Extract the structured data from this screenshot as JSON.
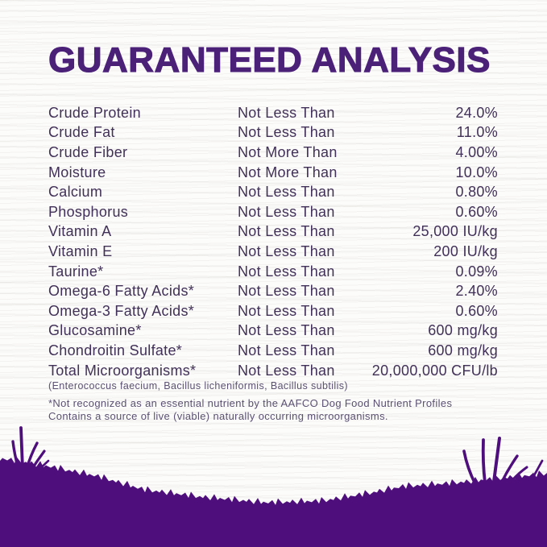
{
  "title": "GUARANTEED ANALYSIS",
  "table": {
    "rows": [
      {
        "name": "Crude Protein",
        "relation": "Not Less Than",
        "value": "24.0%"
      },
      {
        "name": "Crude Fat",
        "relation": "Not Less Than",
        "value": "11.0%"
      },
      {
        "name": "Crude Fiber",
        "relation": "Not More Than",
        "value": "4.00%"
      },
      {
        "name": "Moisture",
        "relation": "Not More Than",
        "value": "10.0%"
      },
      {
        "name": "Calcium",
        "relation": "Not Less Than",
        "value": "0.80%"
      },
      {
        "name": "Phosphorus",
        "relation": "Not Less Than",
        "value": "0.60%"
      },
      {
        "name": "Vitamin A",
        "relation": "Not Less Than",
        "value": "25,000 IU/kg"
      },
      {
        "name": "Vitamin E",
        "relation": "Not Less Than",
        "value": "200 IU/kg"
      },
      {
        "name": "Taurine*",
        "relation": "Not Less Than",
        "value": "0.09%"
      },
      {
        "name": "Omega-6 Fatty Acids*",
        "relation": "Not Less Than",
        "value": "2.40%"
      },
      {
        "name": "Omega-3 Fatty Acids*",
        "relation": "Not Less Than",
        "value": "0.60%"
      },
      {
        "name": "Glucosamine*",
        "relation": "Not Less Than",
        "value": "600 mg/kg"
      },
      {
        "name": "Chondroitin Sulfate*",
        "relation": "Not Less Than",
        "value": "600 mg/kg"
      },
      {
        "name": "Total Microorganisms*",
        "relation": "Not Less Than",
        "value": "20,000,000 CFU/lb"
      }
    ]
  },
  "footnotes": {
    "species": "(Enterococcus faecium, Bacillus licheniformis, Bacillus subtilis)",
    "note1": "*Not recognized as an essential nutrient by the AAFCO Dog Food Nutrient Profiles",
    "note2": "Contains a source of live (viable) naturally occurring microorganisms."
  },
  "colors": {
    "title": "#4b2178",
    "body": "#413057",
    "footnote": "#5b5172",
    "grass": "#4e0f7c"
  }
}
